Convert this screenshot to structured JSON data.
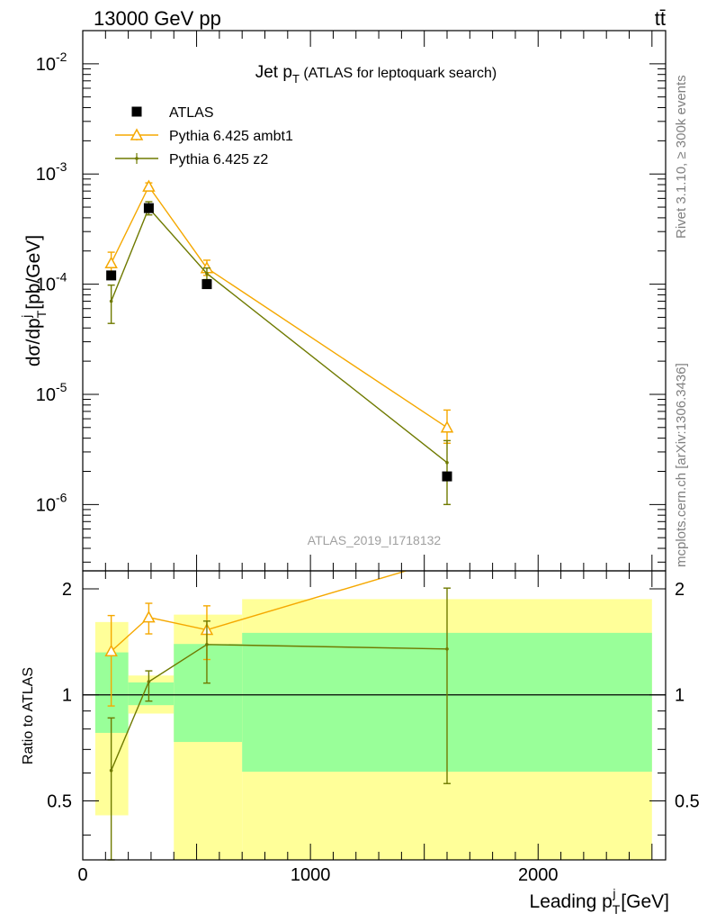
{
  "header": {
    "left": "13000 GeV pp",
    "right": "tt̄"
  },
  "side_labels": {
    "rivet": "Rivet 3.1.10, ≥ 300k events",
    "mcplots": "mcplots.cern.ch [arXiv:1306.3436]"
  },
  "chart_data": [
    {
      "type": "scatter",
      "panel": "main",
      "title": "Jet p_T (ATLAS for leptoquark search)",
      "analysis_label": "ATLAS_2019_I1718132",
      "ylabel": "dσ/dp_T^j [pb/GeV]",
      "yscale": "log",
      "ylim": [
        2.5e-07,
        0.02
      ],
      "xlim": [
        0,
        2560
      ],
      "yticks": [
        1e-06,
        1e-05,
        0.0001,
        0.001,
        0.01
      ],
      "ytick_labels": [
        [
          "10",
          "-6"
        ],
        [
          "10",
          "-5"
        ],
        [
          "10",
          "-4"
        ],
        [
          "10",
          "-3"
        ],
        [
          "10",
          "-2"
        ]
      ],
      "legend_position": "top-left",
      "series": [
        {
          "name": "ATLAS",
          "color": "#000000",
          "marker": "filled-square",
          "x": [
            125,
            290,
            545,
            1600
          ],
          "y": [
            0.00012,
            0.00049,
            0.0001,
            1.8e-06
          ],
          "xerr_lo": [
            70,
            90,
            155,
            900
          ],
          "xerr_hi": [
            75,
            110,
            155,
            900
          ]
        },
        {
          "name": "Pythia 6.425 ambt1",
          "color": "#f5a800",
          "marker": "open-triangle",
          "x": [
            125,
            290,
            545,
            1600
          ],
          "y": [
            0.000155,
            0.00077,
            0.00014,
            5e-06
          ],
          "err_lo": [
            0.00013,
            0.00072,
            0.00012,
            3.6e-06
          ],
          "err_hi": [
            0.000195,
            0.00083,
            0.000165,
            7.2e-06
          ]
        },
        {
          "name": "Pythia 6.425 z2",
          "color": "#6f7a00",
          "marker": "dot",
          "x": [
            125,
            290,
            545,
            1600
          ],
          "y": [
            7e-05,
            0.00049,
            0.000125,
            2.4e-06
          ],
          "err_lo": [
            4.4e-05,
            0.000425,
            0.00011,
            1e-06
          ],
          "err_hi": [
            9.8e-05,
            0.00056,
            0.00014,
            3.8e-06
          ]
        }
      ]
    },
    {
      "type": "line",
      "panel": "ratio",
      "ylabel": "Ratio to ATLAS",
      "xlabel": "Leading p_T^j [GeV]",
      "ylim": [
        0.34,
        2.25
      ],
      "xlim": [
        0,
        2560
      ],
      "yticks": [
        0.5,
        1,
        2
      ],
      "ytick_labels": [
        "0.5",
        "1",
        "2"
      ],
      "xticks": [
        0,
        1000,
        2000
      ],
      "xtick_labels": [
        "0",
        "1000",
        "2000"
      ],
      "bands": [
        {
          "x0": 55,
          "x1": 200,
          "yellow_lo": 0.455,
          "yellow_hi": 1.61,
          "green_lo": 0.78,
          "green_hi": 1.32
        },
        {
          "x0": 200,
          "x1": 400,
          "yellow_lo": 0.885,
          "yellow_hi": 1.135,
          "green_lo": 0.935,
          "green_hi": 1.085
        },
        {
          "x0": 400,
          "x1": 700,
          "yellow_lo": 0.34,
          "yellow_hi": 1.69,
          "green_lo": 0.735,
          "green_hi": 1.395
        },
        {
          "x0": 700,
          "x1": 2500,
          "yellow_lo": 0.34,
          "yellow_hi": 1.87,
          "green_lo": 0.605,
          "green_hi": 1.5
        }
      ],
      "series": [
        {
          "name": "Pythia 6.425 ambt1",
          "color": "#f5a800",
          "marker": "open-triangle",
          "x": [
            125,
            290,
            545,
            1420
          ],
          "y": [
            1.33,
            1.66,
            1.53,
            2.25
          ],
          "err_lo": [
            0.93,
            1.49,
            1.26,
            null
          ],
          "err_hi": [
            1.68,
            1.82,
            1.79,
            null
          ]
        },
        {
          "name": "Pythia 6.425 z2",
          "color": "#6f7a00",
          "marker": "dot",
          "x": [
            125,
            290,
            545,
            1600
          ],
          "y": [
            0.61,
            1.09,
            1.39,
            1.35
          ],
          "err_lo": [
            0.34,
            0.96,
            1.08,
            0.56
          ],
          "err_hi": [
            0.86,
            1.17,
            1.62,
            2.01
          ]
        }
      ]
    }
  ]
}
